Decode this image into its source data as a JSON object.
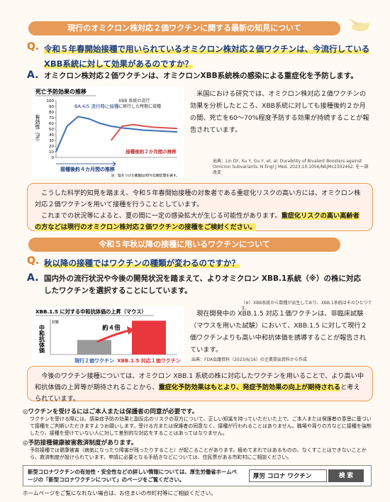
{
  "section1": {
    "header": "現行のオミクロン株対応２価ワクチンに関する最新の知見について",
    "q_label": "Q.",
    "question": "令和５年春開始接種で用いられているオミクロン株対応２価ワクチンは、今流行しているXBB系統に対して効果があるのですか？",
    "a_label": "A.",
    "answer": "オミクロン株対応２価ワクチンは、オミクロンXBB系統株の感染による重症化を予防します。",
    "body": "米国における研究では、オミクロン株対応２価ワクチンの効果を分析したところ、XBB系統に対しても接種後約２か月の間、死亡を60～70%程度予防する効果が持続することが報告されています。",
    "citation": "出典：Lin DY, Xu Y, Gu Y, et. al: Durability of Bivalent Boosters against Omicron Subvariants. N Engl J Med. 2023;10.1056/NEJMc2302462. を一部改変",
    "box": {
      "text1": "こうした科学的知見を踏まえ、令和５年春開始接種の対象者である重症化リスクの高い方には、オミクロン株対応２価ワクチンを用いて接種を行うこととしています。",
      "text2": "これまでの状況等によると、夏の間に一定の感染拡大が生じる可能性があります。",
      "highlight": "重症化リスクの高い高齢者の方などは現行のオミクロン株対応２価ワクチンの接種をご検討ください。"
    }
  },
  "chart_data": [
    {
      "type": "line",
      "title": "死亡予防効果の推移",
      "y_label": "有効性（%）",
      "x_label": "接種後約４カ月間の推移",
      "annotation_blue": "BA.4/5 流行時に接種",
      "annotation_red": "XBB 系統の流行に移行した時期に接種",
      "annotation_period": "接種後約２か月間の推移",
      "note": "注：陰をつけた範囲は95%信頼区間を表す。",
      "categories": [
        null,
        null,
        null,
        null,
        null,
        null,
        null,
        null,
        null,
        null,
        null,
        null
      ],
      "series": [
        {
          "name": "BA.4/5 流行時に接種",
          "color": "#3a6fb5",
          "values": [
            10,
            55,
            72,
            68,
            60,
            55,
            52,
            50,
            48,
            47,
            46,
            45
          ]
        },
        {
          "name": "XBB 系統の流行に移行した時期に接種",
          "color": "#d9534f",
          "values": [
            null,
            null,
            null,
            null,
            null,
            30,
            55,
            58,
            55,
            53,
            52,
            51
          ]
        }
      ],
      "ylim": [
        0,
        100
      ],
      "yticks": [
        0,
        10,
        20,
        30,
        40,
        50,
        60,
        70,
        80,
        90,
        100
      ]
    },
    {
      "type": "bar",
      "title": "XBB.1.5 に対する中和抗体価の上昇（マウス）",
      "y_label": "中和抗体価",
      "scale_note": "対数",
      "annotation": "約４倍",
      "log_scale": true,
      "categories": [
        "現行２価ワクチン",
        "XBB.1.5 対応１価ワクチン"
      ],
      "values": [
        1,
        4
      ],
      "colors": [
        "#9a9a9a",
        "#e8383d"
      ],
      "label_colors": [
        "#2f5ea8",
        "#d92b2b"
      ],
      "ylim": [
        0.35,
        4.5
      ]
    }
  ],
  "section2": {
    "header": "令和５年秋以降の接種に用いるワクチンについて",
    "q_label": "Q.",
    "question": "秋以降の接種ではワクチンの種類が変わるのですか？",
    "a_label": "A.",
    "answer": "国内外の流行状況や今後の開発状況を踏まえて、よりオミクロン XBB.1系統（※）の株に対応したワクチンを選択することにしています。",
    "note": "（※）XBB系統から数種が派生しており、XBB.1系統はそのひとつです。",
    "body": "現在開発中の XBB.1.5 対応１価ワクチンは、非臨床試験（マウスを用いた試験）において、XBB.1.5 に対して現行２価ワクチンよりも高い中和抗体価を誘導することが報告されています。",
    "source": "出典：FDA会議資料（2023/6/16）の企業提出資料から作成",
    "box": {
      "text1": "今後のワクチン接種については、オミクロン XBB.1 系統の株に対応したワクチンを用いることで、より高い中和抗体価の上昇等が期待されることから、",
      "highlight": "重症化予防効果はもとより、発症予防効果の向上が期待される",
      "text2": "と考えられています。"
    }
  },
  "footer": {
    "consent_title": "◎ワクチンを受けるにはご本人または保護者の同意が必要です。",
    "consent_text": "ワクチンを受ける際には、感染症予防の効果と副反応のリスクの双方について、正しい知識を持っていただいた上で、ご本人または保護者の意思に基づいて接種をご判断いただきますようお願いします。受ける方または保護者の同意なく、接種が行われることはありません。職場や周りの方などに接種を強制したり、接種を受けていない人に対して差別的な対応をすることはあってはなりません。",
    "relief_title": "◎予防接種健康被害救済制度があります。",
    "relief_text": "予防接種では健康被害（病気になったり障害が残ったりすること）が起こることがあります。極めてまれではあるものの、なくすことはできないことから、救済制度が設けられています。申請に必要となる手続きなどについては、住民票がある市町村にご相談ください。",
    "info": "新型コロナワクチンの有効性・安全性などの詳しい情報については、厚生労働省ホームページの「新型コロナワクチンについて」のページをご覧ください。",
    "search_query": "厚労 コロナ ワクチン",
    "search_button": "検 索",
    "bottom": "ホームページをご覧になれない場合は、お住まいの市町村等にご相談ください。"
  }
}
